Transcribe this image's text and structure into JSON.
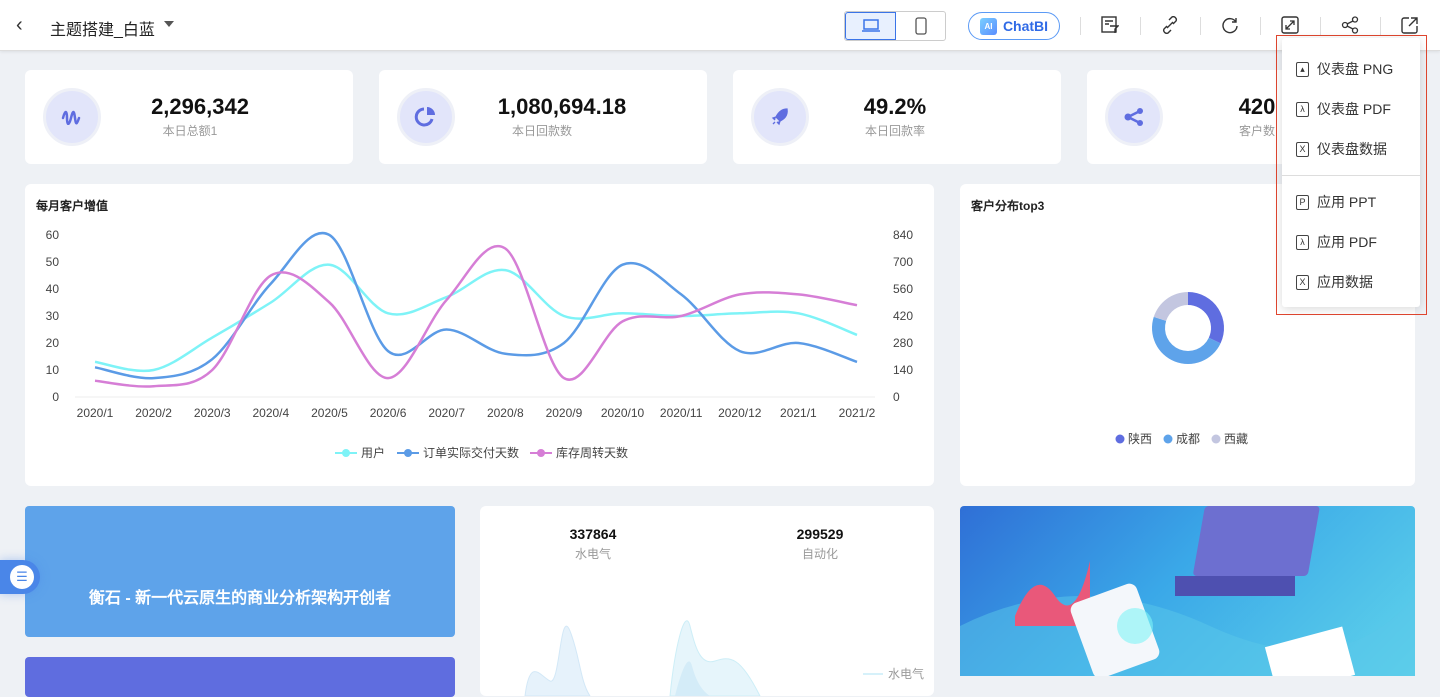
{
  "header": {
    "title": "主题搭建_白蓝",
    "chatbi_label": "ChatBI",
    "chatbi_badge": "AI"
  },
  "kpis": [
    {
      "value": "2,296,342",
      "label": "本日总额1",
      "icon": "wave-icon"
    },
    {
      "value": "1,080,694.18",
      "label": "本日回款数",
      "icon": "pie-icon"
    },
    {
      "value": "49.2%",
      "label": "本日回款率",
      "icon": "rocket-icon"
    },
    {
      "value": "420",
      "label": "客户数",
      "icon": "share-icon"
    }
  ],
  "export_menu": {
    "items": [
      {
        "label": "仪表盘 PNG",
        "icon": "image-icon"
      },
      {
        "label": "仪表盘 PDF",
        "icon": "pdf-icon"
      },
      {
        "label": "仪表盘数据",
        "icon": "excel-icon"
      },
      {
        "label": "应用 PPT",
        "icon": "ppt-icon"
      },
      {
        "label": "应用 PDF",
        "icon": "pdf-icon"
      },
      {
        "label": "应用数据",
        "icon": "excel-icon"
      }
    ]
  },
  "chart_data": [
    {
      "type": "line",
      "title": "每月客户增值",
      "categories": [
        "2020/1",
        "2020/2",
        "2020/3",
        "2020/4",
        "2020/5",
        "2020/6",
        "2020/7",
        "2020/8",
        "2020/9",
        "2020/10",
        "2020/11",
        "2020/12",
        "2021/1",
        "2021/2"
      ],
      "left_axis": {
        "ylim": [
          0,
          60
        ],
        "ticks": [
          "0",
          "10",
          "20",
          "30",
          "40",
          "50",
          "60"
        ]
      },
      "right_axis": {
        "ylim": [
          0,
          840
        ],
        "ticks": [
          "0",
          "140",
          "280",
          "420",
          "560",
          "700",
          "840"
        ]
      },
      "legend": "bottom",
      "series": [
        {
          "name": "用户",
          "axis": "left",
          "color": "#7ef3f7",
          "values": [
            13,
            10,
            22,
            35,
            49,
            31,
            37,
            47,
            30,
            31,
            30,
            31,
            31,
            23
          ]
        },
        {
          "name": "订单实际交付天数",
          "axis": "right",
          "color": "#5b9be6",
          "values": [
            154,
            98,
            196,
            588,
            840,
            238,
            350,
            224,
            280,
            686,
            532,
            238,
            280,
            182
          ]
        },
        {
          "name": "库存周转天数",
          "axis": "left",
          "color": "#d67ed6",
          "values": [
            6,
            4,
            10,
            45,
            35,
            7,
            36,
            55,
            7,
            28,
            30,
            38,
            38,
            34
          ]
        }
      ]
    },
    {
      "type": "pie",
      "title": "客户分布top3",
      "legend": "bottom",
      "categories": [
        "陕西",
        "成都",
        "西藏"
      ],
      "values": [
        32,
        48,
        20
      ],
      "colors": [
        "#5f6de0",
        "#5ea3ea",
        "#c3c6e0"
      ]
    }
  ],
  "banner": {
    "text": "衡石 - 新一代云原生的商业分析架构开创者"
  },
  "stats": [
    {
      "value": "337864",
      "label": "水电气"
    },
    {
      "value": "299529",
      "label": "自动化"
    }
  ],
  "area_legend": "水电气"
}
